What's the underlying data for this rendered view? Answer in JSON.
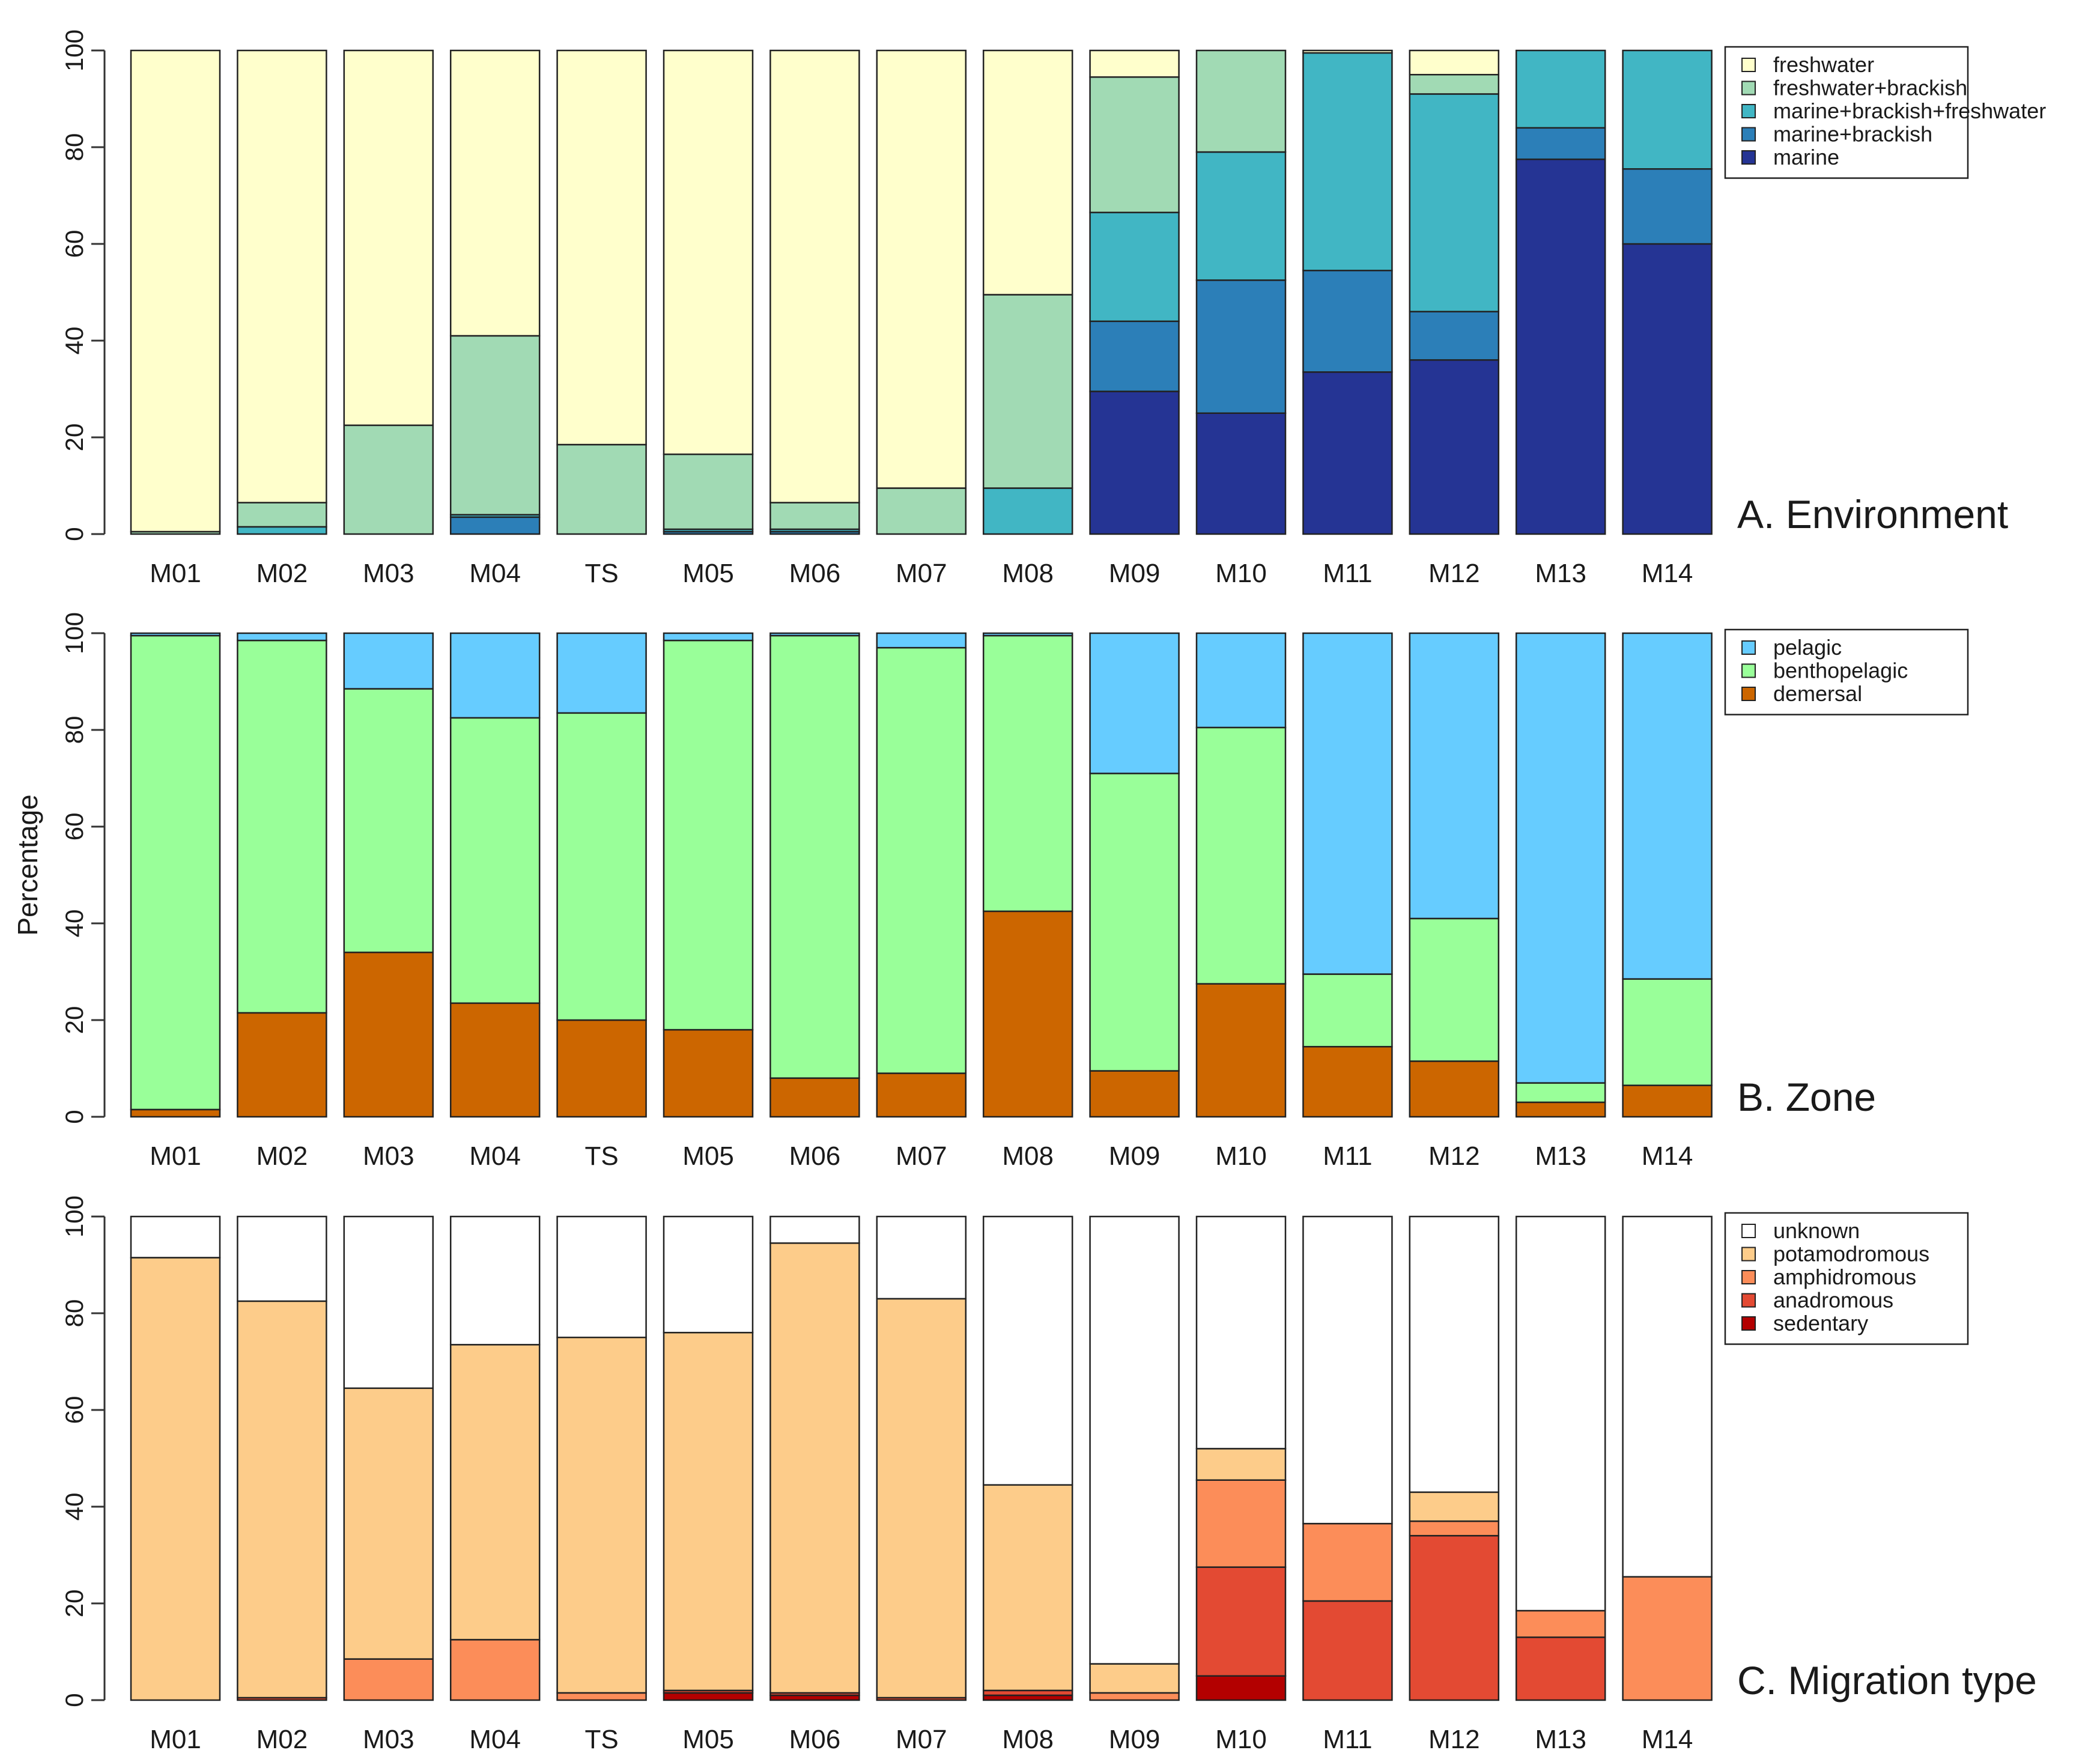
{
  "ylabel": "Percentage",
  "chart_data": [
    {
      "type": "bar",
      "stacked": true,
      "title": "A. Environment",
      "ylabel": "Percentage",
      "ylim": [
        0,
        100
      ],
      "yticks": [
        "0",
        "20",
        "40",
        "60",
        "80",
        "100"
      ],
      "categories": [
        "M01",
        "M02",
        "M03",
        "M04",
        "TS",
        "M05",
        "M06",
        "M07",
        "M08",
        "M09",
        "M10",
        "M11",
        "M12",
        "M13",
        "M14"
      ],
      "legend_position": "top-right",
      "series": [
        {
          "name": "marine",
          "color": "#253494",
          "values": [
            0,
            0,
            0,
            0,
            0,
            0,
            0,
            0,
            0,
            29.5,
            25,
            33.5,
            36,
            77.5,
            60
          ]
        },
        {
          "name": "marine+brackish",
          "color": "#2c7fb8",
          "values": [
            0,
            0,
            0,
            3.5,
            0,
            0.5,
            0.5,
            0,
            0,
            14.5,
            27.5,
            21,
            10,
            6.5,
            15.5
          ]
        },
        {
          "name": "marine+brackish+freshwater",
          "color": "#41b6c4",
          "values": [
            0,
            1.5,
            0,
            0.5,
            0,
            0.5,
            0.5,
            0,
            9.5,
            22.5,
            26.5,
            45,
            45,
            16,
            24.5
          ]
        },
        {
          "name": "freshwater+brackish",
          "color": "#a1dab4",
          "values": [
            0.5,
            5,
            22.5,
            37,
            18.5,
            15.5,
            5.5,
            9.5,
            40,
            28,
            21,
            0,
            4,
            0,
            0
          ]
        },
        {
          "name": "freshwater",
          "color": "#ffffcc",
          "values": [
            99.5,
            93.5,
            77.5,
            59,
            81.5,
            83.5,
            93.5,
            90.5,
            50.5,
            5.5,
            0,
            0.5,
            5,
            0,
            0
          ]
        }
      ]
    },
    {
      "type": "bar",
      "stacked": true,
      "title": "B. Zone",
      "ylabel": "Percentage",
      "ylim": [
        0,
        100
      ],
      "yticks": [
        "0",
        "20",
        "40",
        "60",
        "80",
        "100"
      ],
      "categories": [
        "M01",
        "M02",
        "M03",
        "M04",
        "TS",
        "M05",
        "M06",
        "M07",
        "M08",
        "M09",
        "M10",
        "M11",
        "M12",
        "M13",
        "M14"
      ],
      "legend_position": "top-right",
      "series": [
        {
          "name": "demersal",
          "color": "#cc6600",
          "values": [
            1.5,
            21.5,
            34,
            23.5,
            20,
            18,
            8,
            9,
            42.5,
            9.5,
            27.5,
            14.5,
            11.5,
            3,
            6.5
          ]
        },
        {
          "name": "benthopelagic",
          "color": "#99ff99",
          "values": [
            98,
            77,
            54.5,
            59,
            63.5,
            80.5,
            91.5,
            88,
            57,
            61.5,
            53,
            15,
            29.5,
            4,
            22
          ]
        },
        {
          "name": "pelagic",
          "color": "#66ccff",
          "values": [
            0.5,
            1.5,
            11.5,
            17.5,
            16.5,
            1.5,
            0.5,
            3,
            0.5,
            29,
            19.5,
            70.5,
            59,
            93,
            71.5
          ]
        }
      ]
    },
    {
      "type": "bar",
      "stacked": true,
      "title": "C. Migration type",
      "ylabel": "Percentage",
      "ylim": [
        0,
        100
      ],
      "yticks": [
        "0",
        "20",
        "40",
        "60",
        "80",
        "100"
      ],
      "categories": [
        "M01",
        "M02",
        "M03",
        "M04",
        "TS",
        "M05",
        "M06",
        "M07",
        "M08",
        "M09",
        "M10",
        "M11",
        "M12",
        "M13",
        "M14"
      ],
      "legend_position": "top-right",
      "series": [
        {
          "name": "sedentary",
          "color": "#b30000",
          "values": [
            0,
            0,
            0,
            0,
            0,
            1.5,
            1,
            0,
            1,
            0,
            5,
            0,
            0,
            0,
            0
          ]
        },
        {
          "name": "anadromous",
          "color": "#e34a33",
          "values": [
            0,
            0.5,
            0,
            0,
            0,
            0.5,
            0.5,
            0.5,
            1,
            0,
            22.5,
            20.5,
            34,
            13,
            0
          ]
        },
        {
          "name": "amphidromous",
          "color": "#fc8d59",
          "values": [
            0,
            0,
            8.5,
            12.5,
            1.5,
            0,
            0,
            0,
            0,
            1.5,
            18,
            16,
            3,
            5.5,
            25.5
          ]
        },
        {
          "name": "potamodromous",
          "color": "#fdcc8a",
          "values": [
            91.5,
            82,
            56,
            61,
            73.5,
            74,
            93,
            82.5,
            42.5,
            6,
            6.5,
            0,
            6,
            0,
            0
          ]
        },
        {
          "name": "unknown",
          "color": "#ffffff",
          "values": [
            8.5,
            17.5,
            35.5,
            26.5,
            25,
            24,
            5.5,
            17,
            55.5,
            92.5,
            48,
            63.5,
            57,
            81.5,
            74.5
          ]
        }
      ]
    }
  ]
}
